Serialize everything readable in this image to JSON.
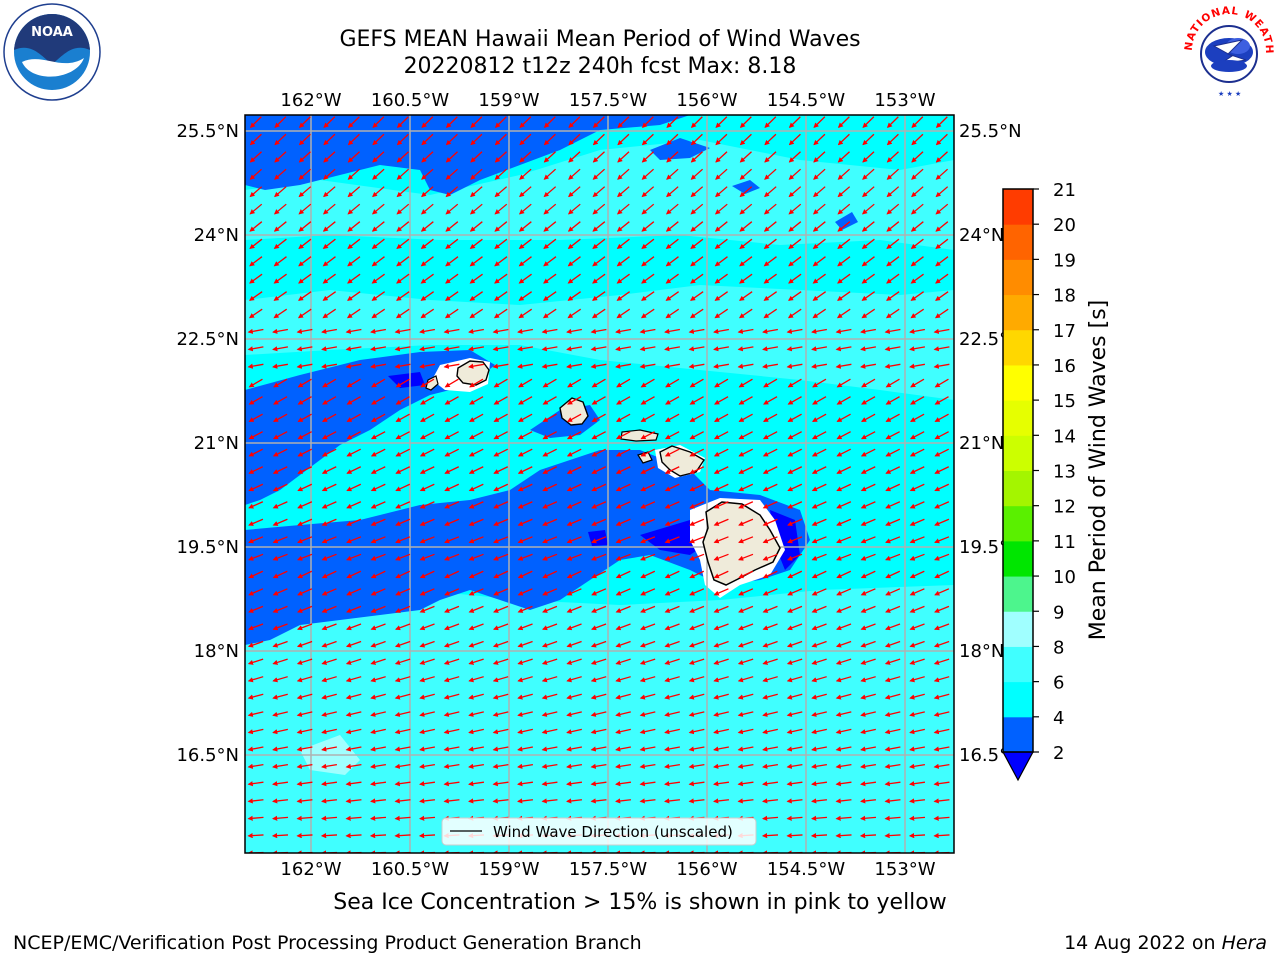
{
  "header": {
    "title_line1": "GEFS MEAN Hawaii Mean Period of Wind Waves",
    "title_line2": "20220812 t12z 240h fcst   Max: 8.18"
  },
  "map": {
    "lon_labels": [
      "162°W",
      "160.5°W",
      "159°W",
      "157.5°W",
      "156°W",
      "154.5°W",
      "153°W"
    ],
    "lon_values": [
      -162,
      -160.5,
      -159,
      -157.5,
      -156,
      -154.5,
      -153
    ],
    "lat_labels": [
      "25.5°N",
      "24°N",
      "22.5°N",
      "21°N",
      "19.5°N",
      "18°N",
      "16.5°N"
    ],
    "lat_values": [
      25.5,
      24,
      22.5,
      21,
      19.5,
      18,
      16.5
    ],
    "legend_label": "Wind Wave Direction (unscaled)",
    "arrow_color": "#ff0000",
    "land_color": "#efebda",
    "grid": true
  },
  "colorbar": {
    "label": "Mean Period of Wind Waves [s]",
    "ticks": [
      "2",
      "4",
      "6",
      "8",
      "9",
      "10",
      "11",
      "12",
      "13",
      "14",
      "15",
      "16",
      "17",
      "18",
      "19",
      "20",
      "21"
    ],
    "levels": [
      {
        "color": "#0061ff"
      },
      {
        "color": "#00ffff"
      },
      {
        "color": "#40ffff"
      },
      {
        "color": "#a0ffff"
      },
      {
        "color": "#4df58d"
      },
      {
        "color": "#00e600"
      },
      {
        "color": "#5af000"
      },
      {
        "color": "#a4f500"
      },
      {
        "color": "#ccff00"
      },
      {
        "color": "#e6ff00"
      },
      {
        "color": "#ffff00"
      },
      {
        "color": "#ffd700"
      },
      {
        "color": "#ffaa00"
      },
      {
        "color": "#ff8c00"
      },
      {
        "color": "#ff6400"
      },
      {
        "color": "#ff3c00"
      }
    ],
    "under_color": "#0000ff"
  },
  "logos": {
    "noaa": "NOAA",
    "nws": "NATIONAL WEATHER SERVICE"
  },
  "footer": {
    "sea_ice_note": "Sea Ice Concentration > 15% is shown in pink to yellow",
    "branch": "NCEP/EMC/Verification Post Processing Product Generation Branch",
    "date_prefix": "14 Aug 2022 on ",
    "machine": "Hera"
  }
}
